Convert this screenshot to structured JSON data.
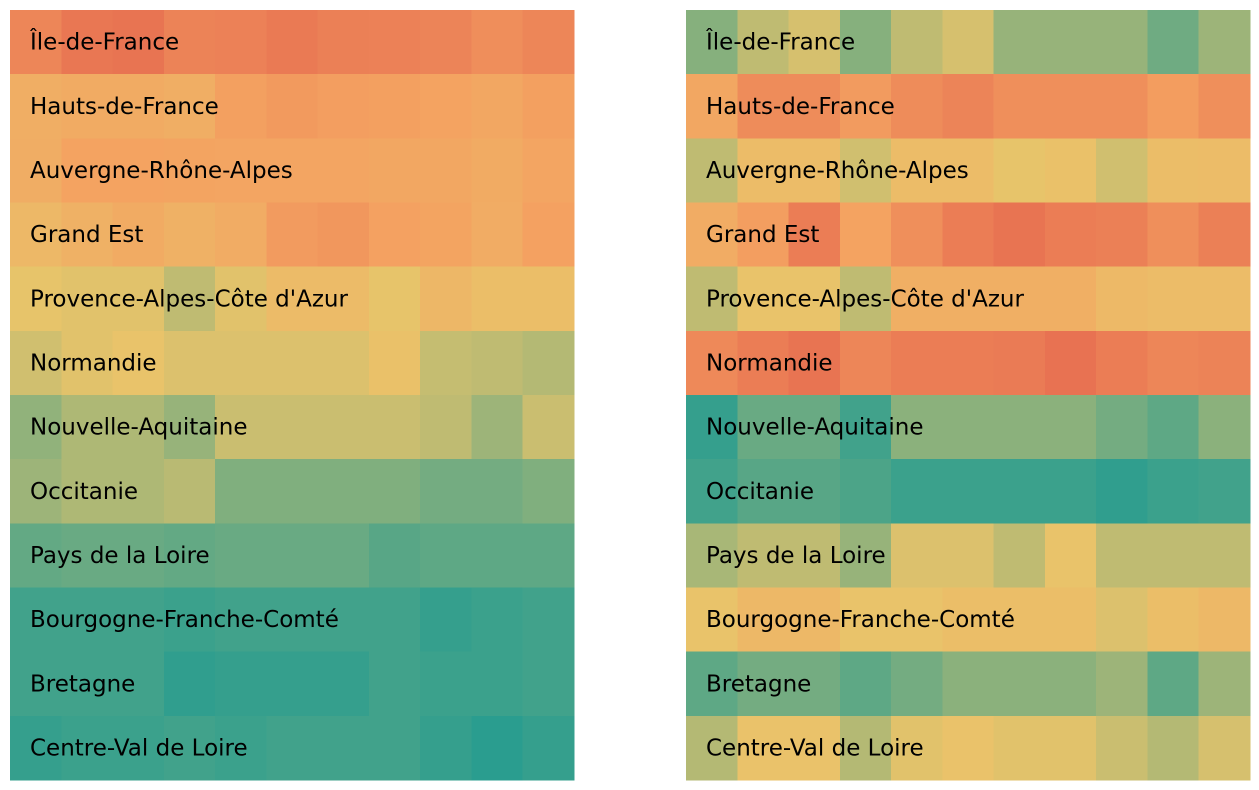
{
  "chart_data": [
    {
      "type": "heatmap",
      "title": "",
      "xlabel": "",
      "ylabel": "",
      "rows": [
        "Île-de-France",
        "Hauts-de-France",
        "Auvergne-Rhône-Alpes",
        "Grand Est",
        "Provence-Alpes-Côte d'Azur",
        "Normandie",
        "Nouvelle-Aquitaine",
        "Occitanie",
        "Pays de la Loire",
        "Bourgogne-Franche-Comté",
        "Bretagne",
        "Centre-Val de Loire"
      ],
      "columns": 11,
      "vrange": [
        0,
        1
      ],
      "colorscale": [
        "#2a9d8f",
        "#e9c46a",
        "#f4a261",
        "#e76f51"
      ],
      "values": [
        [
          0.85,
          0.95,
          0.97,
          0.87,
          0.88,
          0.93,
          0.89,
          0.88,
          0.86,
          0.8,
          0.85
        ],
        [
          0.55,
          0.58,
          0.58,
          0.55,
          0.68,
          0.72,
          0.69,
          0.68,
          0.66,
          0.62,
          0.68
        ],
        [
          0.56,
          0.66,
          0.66,
          0.65,
          0.64,
          0.64,
          0.64,
          0.62,
          0.62,
          0.58,
          0.64
        ],
        [
          0.45,
          0.52,
          0.58,
          0.52,
          0.57,
          0.71,
          0.74,
          0.67,
          0.65,
          0.57,
          0.67
        ],
        [
          0.33,
          0.32,
          0.32,
          0.26,
          0.32,
          0.42,
          0.42,
          0.33,
          0.46,
          0.39,
          0.39
        ],
        [
          0.29,
          0.32,
          0.34,
          0.31,
          0.31,
          0.31,
          0.31,
          0.36,
          0.27,
          0.26,
          0.24
        ],
        [
          0.18,
          0.23,
          0.23,
          0.19,
          0.28,
          0.28,
          0.28,
          0.28,
          0.26,
          0.2,
          0.28
        ],
        [
          0.2,
          0.23,
          0.23,
          0.25,
          0.15,
          0.15,
          0.15,
          0.15,
          0.13,
          0.13,
          0.15
        ],
        [
          0.1,
          0.11,
          0.11,
          0.1,
          0.11,
          0.11,
          0.11,
          0.08,
          0.09,
          0.09,
          0.09
        ],
        [
          0.04,
          0.04,
          0.04,
          0.03,
          0.04,
          0.04,
          0.04,
          0.04,
          0.02,
          0.03,
          0.04
        ],
        [
          0.04,
          0.04,
          0.04,
          0.01,
          0.02,
          0.02,
          0.02,
          0.04,
          0.03,
          0.03,
          0.04
        ],
        [
          0.02,
          0.03,
          0.03,
          0.04,
          0.03,
          0.04,
          0.04,
          0.04,
          0.02,
          0.0,
          0.02
        ]
      ]
    },
    {
      "type": "heatmap",
      "title": "",
      "xlabel": "",
      "ylabel": "",
      "rows": [
        "Île-de-France",
        "Hauts-de-France",
        "Auvergne-Rhône-Alpes",
        "Grand Est",
        "Provence-Alpes-Côte d'Azur",
        "Normandie",
        "Nouvelle-Aquitaine",
        "Occitanie",
        "Pays de la Loire",
        "Bourgogne-Franche-Comté",
        "Bretagne",
        "Centre-Val de Loire"
      ],
      "columns": 11,
      "vrange": [
        0,
        1
      ],
      "colorscale": [
        "#2a9d8f",
        "#e9c46a",
        "#f4a261",
        "#e76f51"
      ],
      "values": [
        [
          0.16,
          0.26,
          0.3,
          0.16,
          0.26,
          0.3,
          0.19,
          0.19,
          0.19,
          0.12,
          0.2
        ],
        [
          0.62,
          0.81,
          0.81,
          0.71,
          0.81,
          0.86,
          0.79,
          0.79,
          0.79,
          0.7,
          0.79
        ],
        [
          0.26,
          0.41,
          0.41,
          0.29,
          0.41,
          0.41,
          0.33,
          0.36,
          0.29,
          0.4,
          0.41
        ],
        [
          0.57,
          0.69,
          0.91,
          0.66,
          0.79,
          0.91,
          0.97,
          0.91,
          0.89,
          0.79,
          0.89
        ],
        [
          0.26,
          0.34,
          0.34,
          0.26,
          0.54,
          0.54,
          0.54,
          0.54,
          0.44,
          0.41,
          0.41
        ],
        [
          0.83,
          0.91,
          0.97,
          0.85,
          0.91,
          0.91,
          0.92,
          0.98,
          0.91,
          0.85,
          0.87
        ],
        [
          0.02,
          0.11,
          0.11,
          0.04,
          0.17,
          0.17,
          0.17,
          0.17,
          0.13,
          0.09,
          0.17
        ],
        [
          0.04,
          0.08,
          0.08,
          0.06,
          0.03,
          0.03,
          0.03,
          0.03,
          0.01,
          0.03,
          0.04
        ],
        [
          0.22,
          0.26,
          0.26,
          0.19,
          0.31,
          0.31,
          0.26,
          0.34,
          0.26,
          0.26,
          0.26
        ],
        [
          0.34,
          0.45,
          0.45,
          0.34,
          0.34,
          0.39,
          0.39,
          0.39,
          0.31,
          0.39,
          0.45
        ],
        [
          0.09,
          0.13,
          0.13,
          0.09,
          0.13,
          0.17,
          0.17,
          0.17,
          0.2,
          0.09,
          0.2
        ],
        [
          0.24,
          0.35,
          0.35,
          0.24,
          0.32,
          0.35,
          0.32,
          0.32,
          0.28,
          0.24,
          0.3
        ]
      ]
    }
  ]
}
